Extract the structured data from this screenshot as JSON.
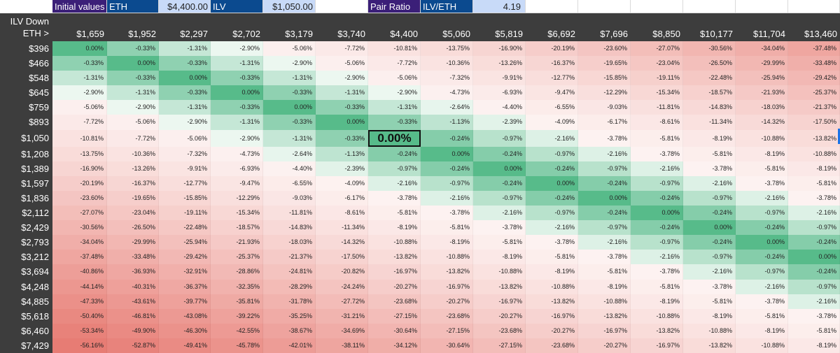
{
  "header": {
    "initial_values_label": "Initial values",
    "eth_label": "ETH",
    "eth_price": "$4,400.00",
    "ilv_label": "ILV",
    "ilv_price": "$1,050.00",
    "pair_ratio_label": "Pair Ratio",
    "pair_label": "ILV/ETH",
    "pair_ratio_value": "4.19"
  },
  "table": {
    "corner_line1": "ILV Down",
    "corner_line2": "ETH >",
    "columns": [
      "$1,659",
      "$1,952",
      "$2,297",
      "$2,702",
      "$3,179",
      "$3,740",
      "$4,400",
      "$5,060",
      "$5,819",
      "$6,692",
      "$7,696",
      "$8,850",
      "$10,177",
      "$11,704",
      "$13,460"
    ],
    "rows": [
      {
        "label": "$396",
        "values": [
          "0.00%",
          "-0.33%",
          "-1.31%",
          "-2.90%",
          "-5.06%",
          "-7.72%",
          "-10.81%",
          "-13.75%",
          "-16.90%",
          "-20.19%",
          "-23.60%",
          "-27.07%",
          "-30.56%",
          "-34.04%",
          "-37.48%"
        ]
      },
      {
        "label": "$466",
        "values": [
          "-0.33%",
          "0.00%",
          "-0.33%",
          "-1.31%",
          "-2.90%",
          "-5.06%",
          "-7.72%",
          "-10.36%",
          "-13.26%",
          "-16.37%",
          "-19.65%",
          "-23.04%",
          "-26.50%",
          "-29.99%",
          "-33.48%"
        ]
      },
      {
        "label": "$548",
        "values": [
          "-1.31%",
          "-0.33%",
          "0.00%",
          "-0.33%",
          "-1.31%",
          "-2.90%",
          "-5.06%",
          "-7.32%",
          "-9.91%",
          "-12.77%",
          "-15.85%",
          "-19.11%",
          "-22.48%",
          "-25.94%",
          "-29.42%"
        ]
      },
      {
        "label": "$645",
        "values": [
          "-2.90%",
          "-1.31%",
          "-0.33%",
          "0.00%",
          "-0.33%",
          "-1.31%",
          "-2.90%",
          "-4.73%",
          "-6.93%",
          "-9.47%",
          "-12.29%",
          "-15.34%",
          "-18.57%",
          "-21.93%",
          "-25.37%"
        ]
      },
      {
        "label": "$759",
        "values": [
          "-5.06%",
          "-2.90%",
          "-1.31%",
          "-0.33%",
          "0.00%",
          "-0.33%",
          "-1.31%",
          "-2.64%",
          "-4.40%",
          "-6.55%",
          "-9.03%",
          "-11.81%",
          "-14.83%",
          "-18.03%",
          "-21.37%"
        ]
      },
      {
        "label": "$893",
        "values": [
          "-7.72%",
          "-5.06%",
          "-2.90%",
          "-1.31%",
          "-0.33%",
          "0.00%",
          "-0.33%",
          "-1.13%",
          "-2.39%",
          "-4.09%",
          "-6.17%",
          "-8.61%",
          "-11.34%",
          "-14.32%",
          "-17.50%"
        ]
      },
      {
        "label": "$1,050",
        "values": [
          "-10.81%",
          "-7.72%",
          "-5.06%",
          "-2.90%",
          "-1.31%",
          "-0.33%",
          "0.00%",
          "-0.24%",
          "-0.97%",
          "-2.16%",
          "-3.78%",
          "-5.81%",
          "-8.19%",
          "-10.88%",
          "-13.82%"
        ]
      },
      {
        "label": "$1,208",
        "values": [
          "-13.75%",
          "-10.36%",
          "-7.32%",
          "-4.73%",
          "-2.64%",
          "-1.13%",
          "-0.24%",
          "0.00%",
          "-0.24%",
          "-0.97%",
          "-2.16%",
          "-3.78%",
          "-5.81%",
          "-8.19%",
          "-10.88%"
        ]
      },
      {
        "label": "$1,389",
        "values": [
          "-16.90%",
          "-13.26%",
          "-9.91%",
          "-6.93%",
          "-4.40%",
          "-2.39%",
          "-0.97%",
          "-0.24%",
          "0.00%",
          "-0.24%",
          "-0.97%",
          "-2.16%",
          "-3.78%",
          "-5.81%",
          "-8.19%"
        ]
      },
      {
        "label": "$1,597",
        "values": [
          "-20.19%",
          "-16.37%",
          "-12.77%",
          "-9.47%",
          "-6.55%",
          "-4.09%",
          "-2.16%",
          "-0.97%",
          "-0.24%",
          "0.00%",
          "-0.24%",
          "-0.97%",
          "-2.16%",
          "-3.78%",
          "-5.81%"
        ]
      },
      {
        "label": "$1,836",
        "values": [
          "-23.60%",
          "-19.65%",
          "-15.85%",
          "-12.29%",
          "-9.03%",
          "-6.17%",
          "-3.78%",
          "-2.16%",
          "-0.97%",
          "-0.24%",
          "0.00%",
          "-0.24%",
          "-0.97%",
          "-2.16%",
          "-3.78%"
        ]
      },
      {
        "label": "$2,112",
        "values": [
          "-27.07%",
          "-23.04%",
          "-19.11%",
          "-15.34%",
          "-11.81%",
          "-8.61%",
          "-5.81%",
          "-3.78%",
          "-2.16%",
          "-0.97%",
          "-0.24%",
          "0.00%",
          "-0.24%",
          "-0.97%",
          "-2.16%"
        ]
      },
      {
        "label": "$2,429",
        "values": [
          "-30.56%",
          "-26.50%",
          "-22.48%",
          "-18.57%",
          "-14.83%",
          "-11.34%",
          "-8.19%",
          "-5.81%",
          "-3.78%",
          "-2.16%",
          "-0.97%",
          "-0.24%",
          "0.00%",
          "-0.24%",
          "-0.97%"
        ]
      },
      {
        "label": "$2,793",
        "values": [
          "-34.04%",
          "-29.99%",
          "-25.94%",
          "-21.93%",
          "-18.03%",
          "-14.32%",
          "-10.88%",
          "-8.19%",
          "-5.81%",
          "-3.78%",
          "-2.16%",
          "-0.97%",
          "-0.24%",
          "0.00%",
          "-0.24%"
        ]
      },
      {
        "label": "$3,212",
        "values": [
          "-37.48%",
          "-33.48%",
          "-29.42%",
          "-25.37%",
          "-21.37%",
          "-17.50%",
          "-13.82%",
          "-10.88%",
          "-8.19%",
          "-5.81%",
          "-3.78%",
          "-2.16%",
          "-0.97%",
          "-0.24%",
          "0.00%"
        ]
      },
      {
        "label": "$3,694",
        "values": [
          "-40.86%",
          "-36.93%",
          "-32.91%",
          "-28.86%",
          "-24.81%",
          "-20.82%",
          "-16.97%",
          "-13.82%",
          "-10.88%",
          "-8.19%",
          "-5.81%",
          "-3.78%",
          "-2.16%",
          "-0.97%",
          "-0.24%"
        ]
      },
      {
        "label": "$4,248",
        "values": [
          "-44.14%",
          "-40.31%",
          "-36.37%",
          "-32.35%",
          "-28.29%",
          "-24.24%",
          "-20.27%",
          "-16.97%",
          "-13.82%",
          "-10.88%",
          "-8.19%",
          "-5.81%",
          "-3.78%",
          "-2.16%",
          "-0.97%"
        ]
      },
      {
        "label": "$4,885",
        "values": [
          "-47.33%",
          "-43.61%",
          "-39.77%",
          "-35.81%",
          "-31.78%",
          "-27.72%",
          "-23.68%",
          "-20.27%",
          "-16.97%",
          "-13.82%",
          "-10.88%",
          "-8.19%",
          "-5.81%",
          "-3.78%",
          "-2.16%"
        ]
      },
      {
        "label": "$5,618",
        "values": [
          "-50.40%",
          "-46.81%",
          "-43.08%",
          "-39.22%",
          "-35.25%",
          "-31.21%",
          "-27.15%",
          "-23.68%",
          "-20.27%",
          "-16.97%",
          "-13.82%",
          "-10.88%",
          "-8.19%",
          "-5.81%",
          "-3.78%"
        ]
      },
      {
        "label": "$6,460",
        "values": [
          "-53.34%",
          "-49.90%",
          "-46.30%",
          "-42.55%",
          "-38.67%",
          "-34.69%",
          "-30.64%",
          "-27.15%",
          "-23.68%",
          "-20.27%",
          "-16.97%",
          "-13.82%",
          "-10.88%",
          "-8.19%",
          "-5.81%"
        ]
      },
      {
        "label": "$7,429",
        "values": [
          "-56.16%",
          "-52.87%",
          "-49.41%",
          "-45.78%",
          "-42.01%",
          "-38.11%",
          "-34.12%",
          "-30.64%",
          "-27.15%",
          "-23.68%",
          "-20.27%",
          "-16.97%",
          "-13.82%",
          "-10.88%",
          "-8.19%"
        ]
      }
    ],
    "highlight_value": "0.00%",
    "colors": {
      "dark_header": "#3d3d3d",
      "purple": "#3b1f78",
      "navy": "#0b4a8f",
      "light_blue": "#c8daf8",
      "green": "#57bb8a",
      "red": "#e67c73"
    }
  }
}
